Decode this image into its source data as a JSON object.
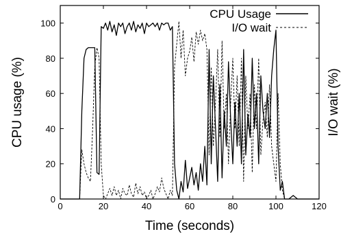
{
  "chart_data": {
    "type": "line",
    "xlabel": "Time (seconds)",
    "ylabel": "CPU usage (%)",
    "y2label": "I/O wait (%)",
    "xlim": [
      0,
      120
    ],
    "ylim": [
      0,
      110
    ],
    "xticks": [
      0,
      20,
      40,
      60,
      80,
      100,
      120
    ],
    "yticks": [
      0,
      20,
      40,
      60,
      80,
      100
    ],
    "grid": false,
    "legend": "top-right",
    "series": [
      {
        "name": "CPU Usage",
        "style": "solid",
        "color": "#000000",
        "x": [
          0,
          6,
          8,
          9,
          10,
          11,
          12,
          13,
          14,
          15,
          16,
          17,
          18,
          19,
          20,
          21,
          22,
          23,
          24,
          25,
          26,
          27,
          28,
          29,
          30,
          31,
          32,
          33,
          34,
          35,
          36,
          37,
          38,
          39,
          40,
          41,
          42,
          43,
          44,
          45,
          46,
          47,
          48,
          49,
          50,
          51,
          52,
          53,
          54,
          55,
          56,
          57,
          58,
          59,
          60,
          61,
          62,
          63,
          64,
          65,
          66,
          67,
          68,
          69,
          70,
          71,
          72,
          73,
          74,
          75,
          76,
          77,
          78,
          79,
          80,
          81,
          82,
          83,
          84,
          85,
          86,
          87,
          88,
          89,
          90,
          91,
          92,
          93,
          94,
          95,
          96,
          97,
          98,
          99,
          100,
          101,
          102,
          103,
          104,
          106,
          108,
          110,
          112,
          114,
          116,
          118,
          120
        ],
        "y": [
          0,
          0,
          0,
          0,
          50,
          80,
          85,
          86,
          86,
          86,
          86,
          15,
          14,
          98,
          97,
          100,
          96,
          101,
          95,
          99,
          93,
          100,
          98,
          100,
          94,
          98,
          100,
          96,
          101,
          95,
          99,
          97,
          100,
          94,
          100,
          98,
          99,
          100,
          98,
          100,
          96,
          100,
          99,
          100,
          100,
          96,
          98,
          20,
          5,
          0,
          10,
          4,
          22,
          6,
          12,
          18,
          8,
          15,
          5,
          20,
          10,
          30,
          8,
          85,
          20,
          70,
          40,
          10,
          65,
          12,
          50,
          30,
          78,
          45,
          20,
          55,
          30,
          60,
          20,
          85,
          25,
          48,
          35,
          80,
          40,
          60,
          20,
          70,
          50,
          40,
          60,
          35,
          70,
          85,
          96,
          30,
          5,
          10,
          0,
          0,
          2,
          0,
          0,
          0,
          0,
          0,
          0
        ]
      },
      {
        "name": "I/O wait",
        "style": "dashed",
        "color": "#000000",
        "x": [
          0,
          6,
          8,
          9,
          10,
          11,
          12,
          13,
          14,
          15,
          16,
          17,
          18,
          19,
          20,
          21,
          22,
          23,
          24,
          25,
          26,
          27,
          28,
          29,
          30,
          31,
          32,
          33,
          34,
          35,
          36,
          37,
          38,
          39,
          40,
          41,
          42,
          43,
          44,
          45,
          46,
          47,
          48,
          49,
          50,
          51,
          52,
          53,
          54,
          55,
          56,
          57,
          58,
          59,
          60,
          61,
          62,
          63,
          64,
          65,
          66,
          67,
          68,
          69,
          70,
          71,
          72,
          73,
          74,
          75,
          76,
          77,
          78,
          79,
          80,
          81,
          82,
          83,
          84,
          85,
          86,
          87,
          88,
          89,
          90,
          91,
          92,
          93,
          94,
          95,
          96,
          97,
          98,
          99,
          100,
          101,
          102,
          103,
          104,
          106,
          108,
          110,
          112,
          114,
          116,
          118,
          120
        ],
        "y": [
          0,
          0,
          0,
          0,
          28,
          20,
          15,
          12,
          10,
          40,
          75,
          86,
          80,
          20,
          2,
          0,
          3,
          6,
          2,
          7,
          2,
          5,
          0,
          6,
          3,
          2,
          8,
          3,
          1,
          9,
          3,
          7,
          2,
          4,
          0,
          2,
          5,
          0,
          3,
          7,
          4,
          12,
          6,
          3,
          0,
          5,
          2,
          75,
          88,
          101,
          80,
          96,
          70,
          80,
          84,
          92,
          78,
          95,
          88,
          96,
          90,
          94,
          85,
          25,
          75,
          30,
          55,
          85,
          35,
          90,
          40,
          60,
          20,
          55,
          80,
          40,
          70,
          30,
          80,
          10,
          70,
          40,
          60,
          15,
          65,
          40,
          80,
          25,
          45,
          55,
          35,
          65,
          30,
          20,
          10,
          60,
          20,
          5,
          0,
          0,
          0,
          0,
          0,
          0,
          0,
          0,
          0
        ]
      }
    ]
  }
}
